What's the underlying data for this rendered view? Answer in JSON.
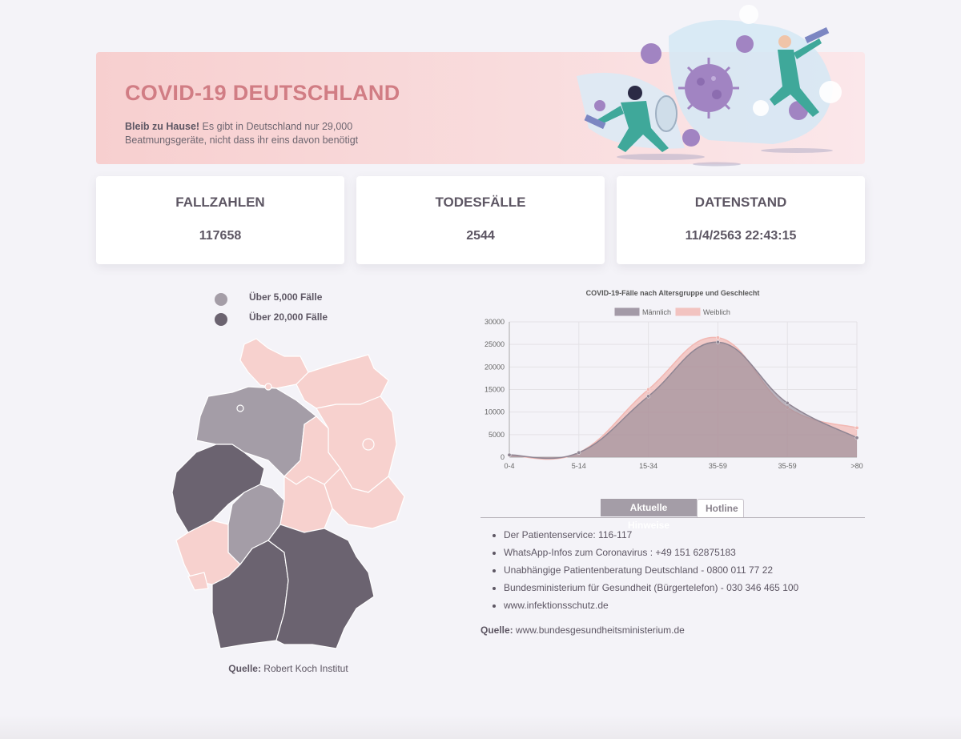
{
  "banner": {
    "title": "COVID-19 DEUTSCHLAND",
    "text_bold": "Bleib zu Hause!",
    "text_rest": " Es gibt in Deutschland nur 29,000 Beatmungsgeräte, nicht dass ihr eins davon benötigt"
  },
  "stats": [
    {
      "label": "FALLZAHLEN",
      "value": "117658"
    },
    {
      "label": "TODESFÄLLE",
      "value": "2544"
    },
    {
      "label": "DATENSTAND",
      "value": "11/4/2563 22:43:15"
    }
  ],
  "map_legend": [
    {
      "label": "Über 5,000 Fälle",
      "color": "#a49da7"
    },
    {
      "label": "Über 20,000 Fälle",
      "color": "#6b6370"
    }
  ],
  "map_colors": {
    "low": "#f7d1ce",
    "mid": "#a49da7",
    "high": "#6b6370"
  },
  "map_source": {
    "label": "Quelle:",
    "text": " Robert Koch Institut"
  },
  "chart_data": {
    "type": "area",
    "title": "COVID-19-Fälle nach Altersgruppe und Geschlecht",
    "categories": [
      "0-4",
      "5-14",
      "15-34",
      "35-59",
      "35-59",
      ">80"
    ],
    "series": [
      {
        "name": "Männlich",
        "values": [
          500,
          1000,
          13500,
          25500,
          12000,
          4300
        ],
        "color": "#8f8593"
      },
      {
        "name": "Weiblich",
        "values": [
          400,
          1000,
          15000,
          26500,
          11000,
          6500
        ],
        "color": "#f2b8b3"
      }
    ],
    "ylim": [
      0,
      30000
    ],
    "yticks": [
      "30000",
      "25000",
      "20000",
      "15000",
      "10000",
      "5000",
      "0"
    ],
    "legend": "top",
    "grid": true
  },
  "tabs": {
    "active": "Aktuelle Hinweise",
    "inactive": "Hotline"
  },
  "hotline": [
    "Der Patientenservice: 116-117",
    "WhatsApp-Infos zum Coronavirus : +49 151 62875183",
    "Unabhängige Patientenberatung Deutschland - 0800 011 77 22",
    "Bundesministerium für Gesundheit (Bürgertelefon) - 030 346 465 100",
    "www.infektionsschutz.de"
  ],
  "hotline_source": {
    "label": "Quelle:",
    "text": " www.bundesgesundheitsministerium.de"
  }
}
